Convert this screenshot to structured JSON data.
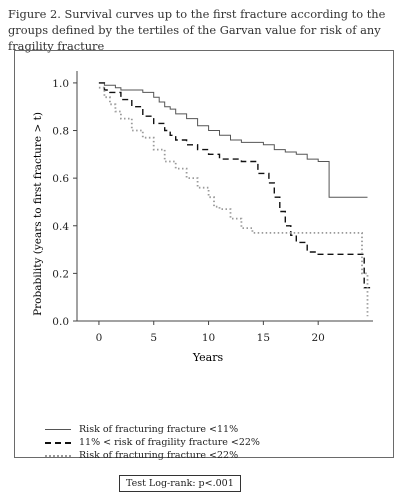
{
  "figure": {
    "caption": "Figure 2. Survival curves up to the first fracture according to the groups defined by the tertiles of the Garvan value for risk of any fragility fracture"
  },
  "chart_data": {
    "type": "line",
    "xlabel": "Years",
    "ylabel": "Probability (years to first fracture > t)",
    "xlim": [
      -2,
      25
    ],
    "ylim": [
      0,
      1.05
    ],
    "xticks": [
      "0",
      "5",
      "10",
      "15",
      "20"
    ],
    "yticks": [
      "0.0",
      "0.2",
      "0.4",
      "0.6",
      "0.8",
      "1.0"
    ],
    "grid": false,
    "legend_position": "bottom-left",
    "series": [
      {
        "name": "Risk of fracturing fracture <11%",
        "style": "solid",
        "color": "#555555",
        "x": [
          0,
          0.5,
          1,
          1.5,
          2,
          3,
          4,
          5,
          5.5,
          6,
          6.5,
          7,
          8,
          9,
          10,
          11,
          12,
          13,
          15,
          16,
          17,
          18,
          19,
          20,
          21,
          24.5
        ],
        "y": [
          1.0,
          0.99,
          0.99,
          0.98,
          0.97,
          0.97,
          0.96,
          0.94,
          0.92,
          0.9,
          0.89,
          0.87,
          0.85,
          0.82,
          0.8,
          0.78,
          0.76,
          0.75,
          0.74,
          0.72,
          0.71,
          0.7,
          0.68,
          0.67,
          0.52,
          0.52
        ]
      },
      {
        "name": "11% < risk of fragility fracture <22%",
        "style": "dashed",
        "color": "#111111",
        "x": [
          0,
          0.5,
          1,
          2,
          3,
          4,
          5,
          6,
          6.5,
          7,
          8,
          9,
          10,
          11,
          13,
          14.5,
          15.5,
          16,
          16.5,
          17,
          17.5,
          18,
          19,
          20,
          23.7,
          24.2,
          24.8
        ],
        "y": [
          1.0,
          0.97,
          0.96,
          0.93,
          0.9,
          0.86,
          0.83,
          0.8,
          0.78,
          0.76,
          0.74,
          0.72,
          0.7,
          0.68,
          0.67,
          0.62,
          0.58,
          0.52,
          0.46,
          0.4,
          0.36,
          0.33,
          0.29,
          0.28,
          0.28,
          0.14,
          0.14
        ]
      },
      {
        "name": "Risk of fracturing fracture <22%",
        "style": "dotted",
        "color": "#9a9a9a",
        "x": [
          0,
          0.5,
          1,
          1.5,
          2,
          3,
          4,
          5,
          6,
          7,
          8,
          9,
          10,
          10.5,
          11,
          12,
          13,
          14,
          16,
          23.5,
          24,
          24.5
        ],
        "y": [
          0.98,
          0.94,
          0.91,
          0.88,
          0.85,
          0.8,
          0.77,
          0.72,
          0.67,
          0.64,
          0.6,
          0.56,
          0.52,
          0.48,
          0.47,
          0.43,
          0.39,
          0.37,
          0.37,
          0.37,
          0.2,
          0.02
        ]
      }
    ],
    "annotation": "Test Log-rank: p<.001"
  }
}
